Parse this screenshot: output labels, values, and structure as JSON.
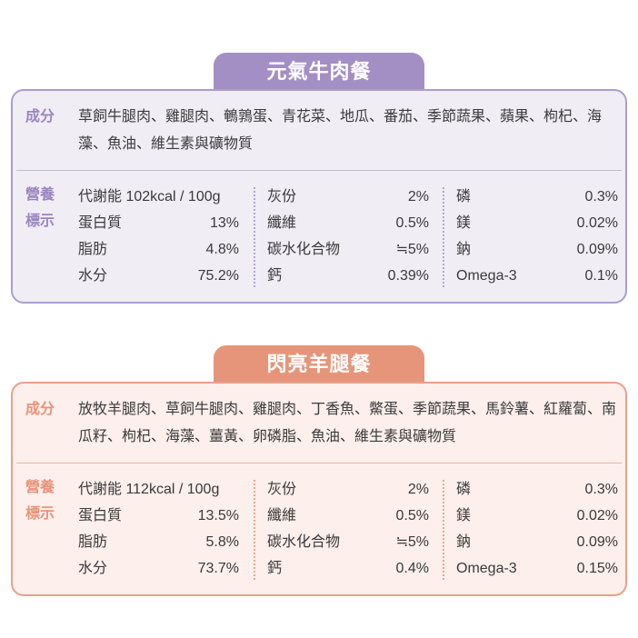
{
  "cards": [
    {
      "title": "元氣牛肉餐",
      "theme": "purple",
      "accent": "#a48fc4",
      "ingredients_label": "成分",
      "ingredients": "草飼牛腿肉、雞腿肉、鵪鶉蛋、青花菜、地瓜、番茄、季節蔬果、蘋果、枸杞、海藻、魚油、維生素與礦物質",
      "nutrition_label": "營養標示",
      "rows": [
        [
          {
            "label": "代謝能 102kcal / 100g",
            "value": ""
          },
          {
            "label": "灰份",
            "value": "2%"
          },
          {
            "label": "磷",
            "value": "0.3%"
          }
        ],
        [
          {
            "label": "蛋白質",
            "value": "13%"
          },
          {
            "label": "纖維",
            "value": "0.5%"
          },
          {
            "label": "鎂",
            "value": "0.02%"
          }
        ],
        [
          {
            "label": "脂肪",
            "value": "4.8%"
          },
          {
            "label": "碳水化合物",
            "value": "≒5%"
          },
          {
            "label": "鈉",
            "value": "0.09%"
          }
        ],
        [
          {
            "label": "水分",
            "value": "75.2%"
          },
          {
            "label": "鈣",
            "value": "0.39%"
          },
          {
            "label": "Omega-3",
            "value": "0.1%"
          }
        ]
      ]
    },
    {
      "title": "閃亮羊腿餐",
      "theme": "orange",
      "accent": "#e6957a",
      "ingredients_label": "成分",
      "ingredients": "放牧羊腿肉、草飼牛腿肉、雞腿肉、丁香魚、鱉蛋、季節蔬果、馬鈴薯、紅蘿蔔、南瓜籽、枸杞、海藻、薑黃、卵磷脂、魚油、維生素與礦物質",
      "nutrition_label": "營養標示",
      "rows": [
        [
          {
            "label": "代謝能 112kcal / 100g",
            "value": ""
          },
          {
            "label": "灰份",
            "value": "2%"
          },
          {
            "label": "磷",
            "value": "0.3%"
          }
        ],
        [
          {
            "label": "蛋白質",
            "value": "13.5%"
          },
          {
            "label": "纖維",
            "value": "0.5%"
          },
          {
            "label": "鎂",
            "value": "0.02%"
          }
        ],
        [
          {
            "label": "脂肪",
            "value": "5.8%"
          },
          {
            "label": "碳水化合物",
            "value": "≒5%"
          },
          {
            "label": "鈉",
            "value": "0.09%"
          }
        ],
        [
          {
            "label": "水分",
            "value": "73.7%"
          },
          {
            "label": "鈣",
            "value": "0.4%"
          },
          {
            "label": "Omega-3",
            "value": "0.15%"
          }
        ]
      ]
    }
  ]
}
